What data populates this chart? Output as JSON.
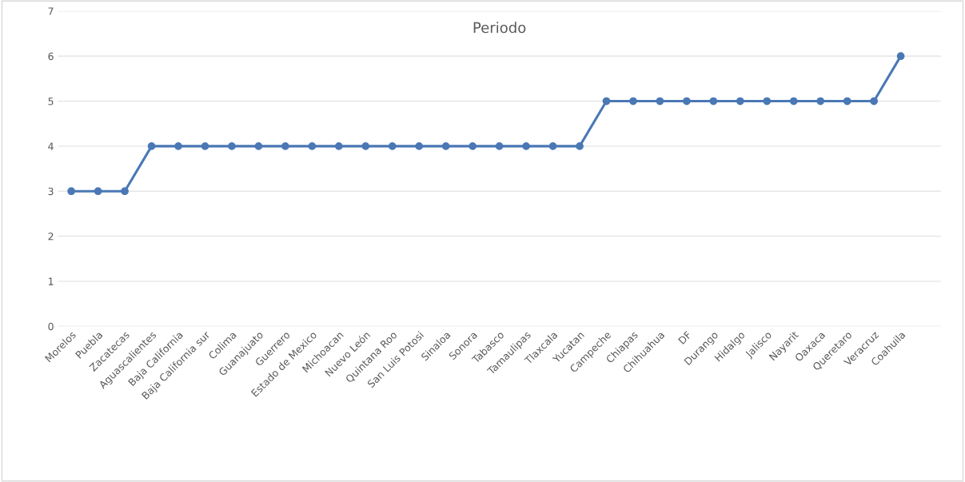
{
  "chart_data": {
    "type": "line",
    "title": "Periodo",
    "categories": [
      "Morelos",
      "Puebla",
      "Zacatecas",
      "Aguascalientes",
      "Baja California",
      "Baja California sur",
      "Colima",
      "Guanajuato",
      "Guerrero",
      "Estado de Mexico",
      "Michoacan",
      "Nuevo León",
      "Quintana Roo",
      "San Luis Potosi",
      "Sinaloa",
      "Sonora",
      "Tabasco",
      "Tamaulipas",
      "Tlaxcala",
      "Yucatan",
      "Campeche",
      "Chiapas",
      "Chihuahua",
      "DF",
      "Durango",
      "Hidalgo",
      "Jalisco",
      "Nayarit",
      "Oaxaca",
      "Queretaro",
      "Veracruz",
      "Coahuila"
    ],
    "series": [
      {
        "color": "#4a78b5",
        "values": [
          3,
          3,
          3,
          4,
          4,
          4,
          4,
          4,
          4,
          4,
          4,
          4,
          4,
          4,
          4,
          4,
          4,
          4,
          4,
          4,
          5,
          5,
          5,
          5,
          5,
          5,
          5,
          5,
          5,
          5,
          5,
          6
        ]
      }
    ],
    "ylim": [
      0,
      7
    ],
    "yticks": [
      0,
      1,
      2,
      3,
      4,
      5,
      6,
      7
    ],
    "grid": "y",
    "marker": "circle",
    "line_style": "solid"
  }
}
